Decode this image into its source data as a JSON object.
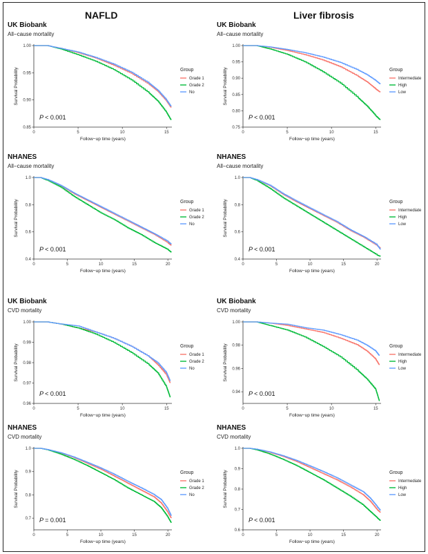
{
  "figure": {
    "col_titles": [
      "NAFLD",
      "Liver fibrosis"
    ]
  },
  "chart_data": [
    {
      "type": "line",
      "cohort": "UK Biobank",
      "title": "All−cause mortality",
      "xlabel": "Follow−up time (years)",
      "ylabel": "Survival Probability",
      "xlim": [
        0,
        15.6
      ],
      "ylim": [
        0.85,
        1.0
      ],
      "xticks": [
        0,
        5,
        10,
        15
      ],
      "yticks": [
        0.85,
        0.9,
        0.95,
        1.0
      ],
      "ytick_labels": [
        "0.85",
        "0.90",
        "0.95",
        "1.00"
      ],
      "pvalue": "< 0.001",
      "legend_title": "Group",
      "series": [
        {
          "name": "Grade 1",
          "color": "#F8766D",
          "x": [
            0,
            1.5,
            3,
            5,
            7,
            9,
            11,
            13,
            14,
            15,
            15.5
          ],
          "y": [
            1.0,
            1.0,
            0.995,
            0.987,
            0.977,
            0.964,
            0.949,
            0.929,
            0.916,
            0.898,
            0.886
          ]
        },
        {
          "name": "Grade 2",
          "color": "#00BA38",
          "x": [
            0,
            1.5,
            3,
            5,
            7,
            9,
            11,
            13,
            14,
            15,
            15.5
          ],
          "y": [
            1.0,
            1.0,
            0.994,
            0.983,
            0.971,
            0.956,
            0.937,
            0.913,
            0.898,
            0.877,
            0.863
          ]
        },
        {
          "name": "No",
          "color": "#619CFF",
          "x": [
            0,
            1.5,
            3,
            5,
            7,
            9,
            11,
            13,
            14,
            15,
            15.5
          ],
          "y": [
            1.0,
            1.0,
            0.995,
            0.988,
            0.978,
            0.966,
            0.951,
            0.931,
            0.918,
            0.9,
            0.888
          ]
        }
      ]
    },
    {
      "type": "line",
      "cohort": "UK Biobank",
      "title": "All−cause mortality",
      "xlabel": "Follow−up time (years)",
      "ylabel": "Survival Probability",
      "xlim": [
        0,
        15.6
      ],
      "ylim": [
        0.75,
        1.0
      ],
      "xticks": [
        0,
        5,
        10,
        15
      ],
      "yticks": [
        0.75,
        0.8,
        0.85,
        0.9,
        0.95,
        1.0
      ],
      "ytick_labels": [
        "0.75",
        "0.80",
        "0.85",
        "0.90",
        "0.95",
        "1.00"
      ],
      "pvalue": "< 0.001",
      "legend_title": "Group",
      "series": [
        {
          "name": "Intermediate",
          "color": "#F8766D",
          "x": [
            0,
            1.5,
            3,
            5,
            7,
            9,
            11,
            13,
            14,
            15,
            15.5
          ],
          "y": [
            1.0,
            1.0,
            0.995,
            0.985,
            0.972,
            0.956,
            0.935,
            0.906,
            0.889,
            0.867,
            0.857
          ]
        },
        {
          "name": "High",
          "color": "#00BA38",
          "x": [
            0,
            1.5,
            3,
            5,
            7,
            9,
            11,
            13,
            14,
            15,
            15.5
          ],
          "y": [
            1.0,
            1.0,
            0.99,
            0.973,
            0.95,
            0.92,
            0.885,
            0.84,
            0.815,
            0.785,
            0.772
          ]
        },
        {
          "name": "Low",
          "color": "#619CFF",
          "x": [
            0,
            1.5,
            3,
            5,
            7,
            9,
            11,
            13,
            14,
            15,
            15.5
          ],
          "y": [
            1.0,
            1.0,
            0.996,
            0.988,
            0.978,
            0.965,
            0.948,
            0.925,
            0.911,
            0.893,
            0.882
          ]
        }
      ]
    },
    {
      "type": "line",
      "cohort": "NHANES",
      "title": "All−cause mortality",
      "xlabel": "Follow−up time (years)",
      "ylabel": "Survival Probability",
      "xlim": [
        0,
        20.6
      ],
      "ylim": [
        0.4,
        1.0
      ],
      "xticks": [
        0,
        5,
        10,
        15,
        20
      ],
      "yticks": [
        0.4,
        0.6,
        0.8,
        1.0
      ],
      "ytick_labels": [
        "0.4",
        "0.6",
        "0.8",
        "1.0"
      ],
      "pvalue": "< 0.001",
      "legend_title": "Group",
      "series": [
        {
          "name": "Grade 1",
          "color": "#F8766D",
          "x": [
            0,
            1,
            2,
            4,
            6,
            8,
            10,
            12,
            14,
            16,
            18,
            20,
            20.5
          ],
          "y": [
            1.0,
            1.0,
            0.985,
            0.94,
            0.88,
            0.83,
            0.78,
            0.73,
            0.68,
            0.63,
            0.58,
            0.52,
            0.5
          ]
        },
        {
          "name": "Grade 2",
          "color": "#00BA38",
          "x": [
            0,
            1,
            2,
            4,
            6,
            8,
            10,
            12,
            14,
            16,
            18,
            20,
            20.5
          ],
          "y": [
            1.0,
            1.0,
            0.98,
            0.93,
            0.86,
            0.8,
            0.74,
            0.69,
            0.63,
            0.58,
            0.52,
            0.47,
            0.45
          ]
        },
        {
          "name": "No",
          "color": "#619CFF",
          "x": [
            0,
            1,
            2,
            4,
            6,
            8,
            10,
            12,
            14,
            16,
            18,
            20,
            20.5
          ],
          "y": [
            1.0,
            1.0,
            0.986,
            0.942,
            0.885,
            0.835,
            0.785,
            0.735,
            0.685,
            0.635,
            0.585,
            0.53,
            0.51
          ]
        }
      ]
    },
    {
      "type": "line",
      "cohort": "NHANES",
      "title": "All−cause mortality",
      "xlabel": "Follow−up time (years)",
      "ylabel": "Survival Probability",
      "xlim": [
        0,
        20.6
      ],
      "ylim": [
        0.4,
        1.0
      ],
      "xticks": [
        0,
        5,
        10,
        15,
        20
      ],
      "yticks": [
        0.4,
        0.6,
        0.8,
        1.0
      ],
      "ytick_labels": [
        "0.4",
        "0.6",
        "0.8",
        "1.0"
      ],
      "pvalue": "< 0.001",
      "legend_title": "Group",
      "series": [
        {
          "name": "Intermediate",
          "color": "#F8766D",
          "x": [
            0,
            1,
            2,
            4,
            6,
            8,
            10,
            12,
            14,
            16,
            18,
            20,
            20.5
          ],
          "y": [
            1.0,
            1.0,
            0.985,
            0.94,
            0.875,
            0.82,
            0.77,
            0.72,
            0.67,
            0.61,
            0.56,
            0.5,
            0.48
          ]
        },
        {
          "name": "High",
          "color": "#00BA38",
          "x": [
            0,
            1,
            2,
            4,
            6,
            8,
            10,
            12,
            14,
            16,
            18,
            20,
            20.5
          ],
          "y": [
            1.0,
            1.0,
            0.98,
            0.92,
            0.85,
            0.79,
            0.73,
            0.67,
            0.61,
            0.55,
            0.49,
            0.43,
            0.42
          ]
        },
        {
          "name": "Low",
          "color": "#619CFF",
          "x": [
            0,
            1,
            2,
            4,
            6,
            8,
            10,
            12,
            14,
            16,
            18,
            20,
            20.5
          ],
          "y": [
            1.0,
            1.0,
            0.986,
            0.943,
            0.88,
            0.826,
            0.775,
            0.725,
            0.675,
            0.615,
            0.565,
            0.505,
            0.47
          ]
        }
      ]
    },
    {
      "type": "line",
      "cohort": "UK Biobank",
      "title": "CVD mortality",
      "xlabel": "Follow−up time (years)",
      "ylabel": "Survival Probability",
      "xlim": [
        0,
        15.6
      ],
      "ylim": [
        0.96,
        1.0
      ],
      "xticks": [
        0,
        5,
        10,
        15
      ],
      "yticks": [
        0.96,
        0.97,
        0.98,
        0.99,
        1.0
      ],
      "ytick_labels": [
        "0.96",
        "0.97",
        "0.98",
        "0.99",
        "1.00"
      ],
      "pvalue": "< 0.001",
      "legend_title": "Group",
      "series": [
        {
          "name": "Grade 1",
          "color": "#F8766D",
          "x": [
            0,
            1.5,
            3,
            5,
            7,
            9,
            11,
            13,
            14,
            15,
            15.4
          ],
          "y": [
            1.0,
            1.0,
            0.999,
            0.997,
            0.995,
            0.992,
            0.988,
            0.983,
            0.979,
            0.974,
            0.97
          ]
        },
        {
          "name": "Grade 2",
          "color": "#00BA38",
          "x": [
            0,
            1.5,
            3,
            5,
            7,
            9,
            11,
            13,
            14,
            15,
            15.4
          ],
          "y": [
            1.0,
            1.0,
            0.999,
            0.997,
            0.994,
            0.99,
            0.985,
            0.979,
            0.975,
            0.968,
            0.963
          ]
        },
        {
          "name": "No",
          "color": "#619CFF",
          "x": [
            0,
            1.5,
            3,
            5,
            7,
            9,
            11,
            13,
            14,
            15,
            15.4
          ],
          "y": [
            1.0,
            1.0,
            0.999,
            0.998,
            0.995,
            0.992,
            0.988,
            0.983,
            0.98,
            0.975,
            0.971
          ]
        }
      ]
    },
    {
      "type": "line",
      "cohort": "UK Biobank",
      "title": "CVD mortality",
      "xlabel": "Follow−up time (years)",
      "ylabel": "Survival Probability",
      "xlim": [
        0,
        15.6
      ],
      "ylim": [
        0.93,
        1.0
      ],
      "xticks": [
        0,
        5,
        10,
        15
      ],
      "yticks": [
        0.94,
        0.96,
        0.98,
        1.0
      ],
      "ytick_labels": [
        "0.94",
        "0.96",
        "0.98",
        "1.00"
      ],
      "pvalue": "< 0.001",
      "legend_title": "Group",
      "series": [
        {
          "name": "Intermediate",
          "color": "#F8766D",
          "x": [
            0,
            1.5,
            3,
            5,
            7,
            9,
            11,
            13,
            14,
            15,
            15.4
          ],
          "y": [
            1.0,
            1.0,
            0.999,
            0.997,
            0.994,
            0.991,
            0.986,
            0.98,
            0.975,
            0.968,
            0.963
          ]
        },
        {
          "name": "High",
          "color": "#00BA38",
          "x": [
            0,
            1.5,
            3,
            5,
            7,
            9,
            11,
            13,
            14,
            15,
            15.4
          ],
          "y": [
            1.0,
            1.0,
            0.997,
            0.993,
            0.987,
            0.979,
            0.97,
            0.958,
            0.951,
            0.942,
            0.932
          ]
        },
        {
          "name": "Low",
          "color": "#619CFF",
          "x": [
            0,
            1.5,
            3,
            5,
            7,
            9,
            11,
            13,
            14,
            15,
            15.4
          ],
          "y": [
            1.0,
            1.0,
            0.999,
            0.998,
            0.995,
            0.993,
            0.989,
            0.984,
            0.98,
            0.975,
            0.971
          ]
        }
      ]
    },
    {
      "type": "line",
      "cohort": "NHANES",
      "title": "CVD mortality",
      "xlabel": "Follow−up time (years)",
      "ylabel": "Survival Probability",
      "xlim": [
        0,
        20.6
      ],
      "ylim": [
        0.65,
        1.0
      ],
      "xticks": [
        0,
        5,
        10,
        15,
        20
      ],
      "yticks": [
        0.7,
        0.8,
        0.9,
        1.0
      ],
      "ytick_labels": [
        "0.7",
        "0.8",
        "0.9",
        "1.0"
      ],
      "pvalue": "= 0.001",
      "legend_title": "Group",
      "series": [
        {
          "name": "Grade 1",
          "color": "#F8766D",
          "x": [
            0,
            1,
            2,
            4,
            6,
            8,
            10,
            12,
            14,
            16,
            18,
            19,
            20,
            20.5
          ],
          "y": [
            1.0,
            1.0,
            0.995,
            0.98,
            0.96,
            0.935,
            0.91,
            0.88,
            0.85,
            0.82,
            0.79,
            0.765,
            0.725,
            0.7
          ]
        },
        {
          "name": "Grade 2",
          "color": "#00BA38",
          "x": [
            0,
            1,
            2,
            4,
            6,
            8,
            10,
            12,
            14,
            16,
            18,
            19,
            20,
            20.5
          ],
          "y": [
            1.0,
            1.0,
            0.994,
            0.975,
            0.952,
            0.925,
            0.895,
            0.865,
            0.83,
            0.8,
            0.77,
            0.745,
            0.705,
            0.68
          ]
        },
        {
          "name": "No",
          "color": "#619CFF",
          "x": [
            0,
            1,
            2,
            4,
            6,
            8,
            10,
            12,
            14,
            16,
            18,
            19,
            20,
            20.5
          ],
          "y": [
            1.0,
            1.0,
            0.995,
            0.981,
            0.962,
            0.939,
            0.915,
            0.888,
            0.858,
            0.83,
            0.8,
            0.78,
            0.74,
            0.71
          ]
        }
      ]
    },
    {
      "type": "line",
      "cohort": "NHANES",
      "title": "CVD mortality",
      "xlabel": "Follow−up time (years)",
      "ylabel": "Survival Probability",
      "xlim": [
        0,
        20.6
      ],
      "ylim": [
        0.6,
        1.0
      ],
      "xticks": [
        0,
        5,
        10,
        15,
        20
      ],
      "yticks": [
        0.6,
        0.7,
        0.8,
        0.9,
        1.0
      ],
      "ytick_labels": [
        "0.6",
        "0.7",
        "0.8",
        "0.9",
        "1.0"
      ],
      "pvalue": "< 0.001",
      "legend_title": "Group",
      "series": [
        {
          "name": "Intermediate",
          "color": "#F8766D",
          "x": [
            0,
            1,
            2,
            4,
            6,
            8,
            10,
            12,
            14,
            16,
            18,
            19,
            20,
            20.5
          ],
          "y": [
            1.0,
            1.0,
            0.995,
            0.98,
            0.96,
            0.935,
            0.905,
            0.875,
            0.845,
            0.81,
            0.77,
            0.74,
            0.7,
            0.685
          ]
        },
        {
          "name": "High",
          "color": "#00BA38",
          "x": [
            0,
            1,
            2,
            4,
            6,
            8,
            10,
            12,
            14,
            16,
            18,
            19,
            20,
            20.5
          ],
          "y": [
            1.0,
            1.0,
            0.993,
            0.972,
            0.945,
            0.915,
            0.88,
            0.845,
            0.805,
            0.765,
            0.72,
            0.69,
            0.66,
            0.645
          ]
        },
        {
          "name": "Low",
          "color": "#619CFF",
          "x": [
            0,
            1,
            2,
            4,
            6,
            8,
            10,
            12,
            14,
            16,
            18,
            19,
            20,
            20.5
          ],
          "y": [
            1.0,
            1.0,
            0.996,
            0.982,
            0.963,
            0.94,
            0.913,
            0.885,
            0.855,
            0.82,
            0.785,
            0.755,
            0.715,
            0.695
          ]
        }
      ]
    }
  ]
}
